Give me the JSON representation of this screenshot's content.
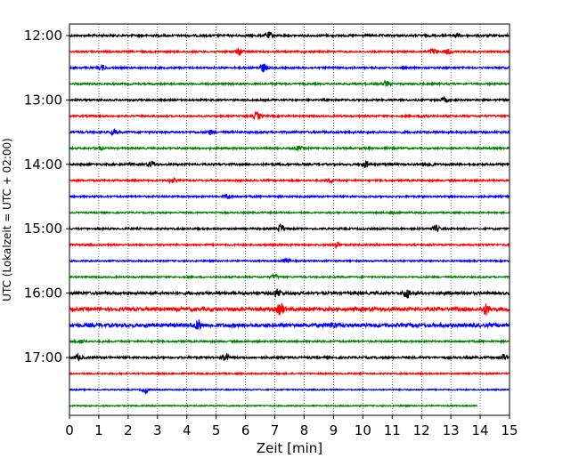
{
  "chart_data": {
    "type": "line",
    "title": "",
    "xlabel": "Zeit  [min]",
    "ylabel": "UTC (Lokalzeit = UTC + 02:00)",
    "xlim": [
      0,
      15
    ],
    "x_ticks": [
      "0",
      "1",
      "2",
      "3",
      "4",
      "5",
      "6",
      "7",
      "8",
      "9",
      "10",
      "11",
      "12",
      "13",
      "14",
      "15"
    ],
    "y_tick_labels": [
      "12:00",
      "13:00",
      "14:00",
      "15:00",
      "16:00",
      "17:00"
    ],
    "grid": "vertical dotted at each minute",
    "legend": "none",
    "colors": [
      "#000000",
      "#ff0000",
      "#0000ff",
      "#008000"
    ],
    "series": [
      {
        "start": "12:00",
        "color": "#000000",
        "amplitude": 0.35,
        "events": [
          {
            "t": 6.8,
            "a": 1.0
          },
          {
            "t": 13.2,
            "a": 0.7
          }
        ]
      },
      {
        "start": "12:15",
        "color": "#ff0000",
        "amplitude": 0.3,
        "events": [
          {
            "t": 5.8,
            "a": 1.1
          },
          {
            "t": 12.4,
            "a": 0.9
          },
          {
            "t": 12.9,
            "a": 0.8
          }
        ]
      },
      {
        "start": "12:30",
        "color": "#0000ff",
        "amplitude": 0.3,
        "events": [
          {
            "t": 1.1,
            "a": 0.8
          },
          {
            "t": 6.6,
            "a": 1.4
          }
        ]
      },
      {
        "start": "12:45",
        "color": "#008000",
        "amplitude": 0.3,
        "events": [
          {
            "t": 10.8,
            "a": 0.9
          }
        ]
      },
      {
        "start": "13:00",
        "color": "#000000",
        "amplitude": 0.3,
        "events": [
          {
            "t": 12.8,
            "a": 0.8
          }
        ]
      },
      {
        "start": "13:15",
        "color": "#ff0000",
        "amplitude": 0.3,
        "events": [
          {
            "t": 6.4,
            "a": 1.2
          },
          {
            "t": 12.1,
            "a": 0.6
          }
        ]
      },
      {
        "start": "13:30",
        "color": "#0000ff",
        "amplitude": 0.35,
        "events": [
          {
            "t": 1.5,
            "a": 0.7
          },
          {
            "t": 4.8,
            "a": 0.6
          }
        ]
      },
      {
        "start": "13:45",
        "color": "#008000",
        "amplitude": 0.3,
        "events": [
          {
            "t": 1.0,
            "a": 0.6
          },
          {
            "t": 7.8,
            "a": 0.6
          }
        ]
      },
      {
        "start": "14:00",
        "color": "#000000",
        "amplitude": 0.35,
        "events": [
          {
            "t": 2.8,
            "a": 0.9
          },
          {
            "t": 10.1,
            "a": 1.0
          },
          {
            "t": 12.3,
            "a": 0.7
          }
        ]
      },
      {
        "start": "14:15",
        "color": "#ff0000",
        "amplitude": 0.3,
        "events": [
          {
            "t": 3.5,
            "a": 0.7
          },
          {
            "t": 8.9,
            "a": 0.6
          }
        ]
      },
      {
        "start": "14:30",
        "color": "#0000ff",
        "amplitude": 0.3,
        "events": [
          {
            "t": 5.4,
            "a": 0.7
          }
        ]
      },
      {
        "start": "14:45",
        "color": "#008000",
        "amplitude": 0.25,
        "events": [
          {
            "t": 11.1,
            "a": 0.5
          }
        ]
      },
      {
        "start": "15:00",
        "color": "#000000",
        "amplitude": 0.3,
        "events": [
          {
            "t": 7.2,
            "a": 1.4
          },
          {
            "t": 12.5,
            "a": 0.9
          }
        ]
      },
      {
        "start": "15:15",
        "color": "#ff0000",
        "amplitude": 0.3,
        "events": [
          {
            "t": 9.1,
            "a": 1.0
          }
        ]
      },
      {
        "start": "15:30",
        "color": "#0000ff",
        "amplitude": 0.25,
        "events": [
          {
            "t": 7.4,
            "a": 0.8
          }
        ]
      },
      {
        "start": "15:45",
        "color": "#008000",
        "amplitude": 0.25,
        "events": [
          {
            "t": 7.0,
            "a": 0.7
          }
        ]
      },
      {
        "start": "16:00",
        "color": "#000000",
        "amplitude": 0.45,
        "events": [
          {
            "t": 7.1,
            "a": 1.2
          },
          {
            "t": 11.5,
            "a": 1.6
          }
        ]
      },
      {
        "start": "16:15",
        "color": "#ff0000",
        "amplitude": 0.6,
        "events": [
          {
            "t": 7.2,
            "a": 1.8
          },
          {
            "t": 14.2,
            "a": 1.6
          }
        ]
      },
      {
        "start": "16:30",
        "color": "#0000ff",
        "amplitude": 0.6,
        "events": [
          {
            "t": 4.4,
            "a": 1.4
          },
          {
            "t": 9.0,
            "a": 0.8
          }
        ]
      },
      {
        "start": "16:45",
        "color": "#008000",
        "amplitude": 0.3,
        "events": [
          {
            "t": 0.4,
            "a": 0.6
          }
        ]
      },
      {
        "start": "17:00",
        "color": "#000000",
        "amplitude": 0.35,
        "events": [
          {
            "t": 0.3,
            "a": 0.8
          },
          {
            "t": 5.3,
            "a": 1.3
          },
          {
            "t": 14.8,
            "a": 0.8
          }
        ]
      },
      {
        "start": "17:15",
        "color": "#ff0000",
        "amplitude": 0.25,
        "events": []
      },
      {
        "start": "17:30",
        "color": "#0000ff",
        "amplitude": 0.2,
        "events": [
          {
            "t": 2.6,
            "a": 1.0
          }
        ]
      },
      {
        "start": "17:45",
        "color": "#008000",
        "amplitude": 0.2,
        "events": [],
        "end_minute": 13.9
      }
    ]
  }
}
